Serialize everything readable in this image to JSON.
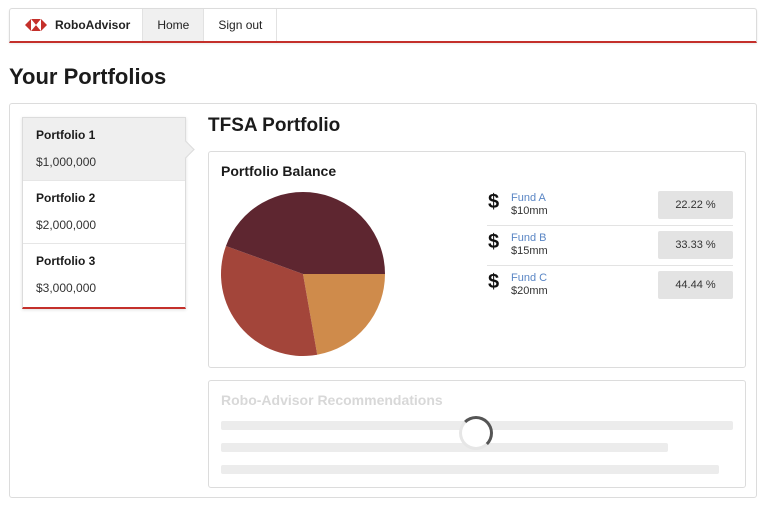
{
  "app": {
    "name": "RoboAdvisor",
    "brand_color": "#c4302b"
  },
  "nav": {
    "items": [
      {
        "label": "Home",
        "active": true
      },
      {
        "label": "Sign out",
        "active": false
      }
    ]
  },
  "page_title": "Your Portfolios",
  "portfolios": [
    {
      "name": "Portfolio 1",
      "value": "$1,000,000",
      "active": true
    },
    {
      "name": "Portfolio 2",
      "value": "$2,000,000",
      "active": false
    },
    {
      "name": "Portfolio 3",
      "value": "$3,000,000",
      "active": false
    }
  ],
  "selected_portfolio": "TFSA Portfolio",
  "balance": {
    "title": "Portfolio Balance",
    "funds": [
      {
        "name": "Fund A",
        "amount": "$10mm",
        "percent_label": "22.22 %",
        "percent": 22.22,
        "color": "#cf8b4b",
        "icon": "dollar-icon"
      },
      {
        "name": "Fund B",
        "amount": "$15mm",
        "percent_label": "33.33 %",
        "percent": 33.33,
        "color": "#a3453a",
        "icon": "dollar-icon"
      },
      {
        "name": "Fund C",
        "amount": "$20mm",
        "percent_label": "44.44 %",
        "percent": 44.44,
        "color": "#5e2630",
        "icon": "dollar-icon"
      }
    ]
  },
  "recommendations": {
    "title": "Robo-Advisor Recommendations",
    "loading": true
  }
}
